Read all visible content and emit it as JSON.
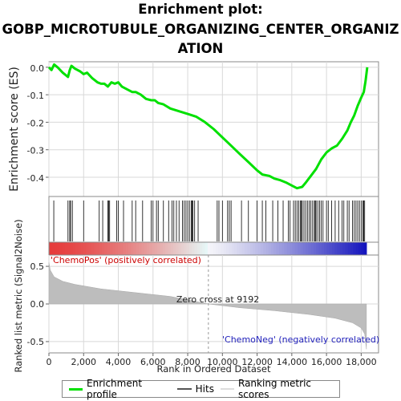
{
  "title_line1": "Enrichment plot:",
  "title_line2": "GOBP_MICROTUBULE_ORGANIZING_CENTER_ORGANIZ",
  "title_line3": "ATION",
  "colors": {
    "es_line": "#00e000",
    "hits": "#000000",
    "metric_fill": "#bdbdbd",
    "pos_label": "#cc0000",
    "neg_label": "#2222bb",
    "grid": "#d8d8d8"
  },
  "chart_data": [
    {
      "type": "line",
      "name": "enrichment-score",
      "ylabel": "Enrichment score (ES)",
      "ylim": [
        -0.47,
        0.02
      ],
      "yticks": [
        0.0,
        -0.1,
        -0.2,
        -0.3,
        -0.4
      ],
      "ytick_labels": [
        "0.0",
        "-0.1",
        "-0.2",
        "-0.3",
        "-0.4"
      ],
      "xlim": [
        0,
        19000
      ],
      "grid": true,
      "points": [
        [
          0,
          0.0
        ],
        [
          150,
          -0.01
        ],
        [
          300,
          0.01
        ],
        [
          500,
          0.0
        ],
        [
          800,
          -0.02
        ],
        [
          1100,
          -0.035
        ],
        [
          1200,
          -0.01
        ],
        [
          1300,
          0.005
        ],
        [
          1500,
          -0.005
        ],
        [
          1800,
          -0.015
        ],
        [
          2000,
          -0.025
        ],
        [
          2200,
          -0.02
        ],
        [
          2500,
          -0.04
        ],
        [
          2800,
          -0.055
        ],
        [
          3000,
          -0.06
        ],
        [
          3200,
          -0.06
        ],
        [
          3400,
          -0.07
        ],
        [
          3600,
          -0.055
        ],
        [
          3800,
          -0.06
        ],
        [
          4000,
          -0.055
        ],
        [
          4200,
          -0.07
        ],
        [
          4500,
          -0.08
        ],
        [
          4800,
          -0.09
        ],
        [
          5000,
          -0.09
        ],
        [
          5300,
          -0.1
        ],
        [
          5600,
          -0.115
        ],
        [
          5900,
          -0.12
        ],
        [
          6100,
          -0.12
        ],
        [
          6300,
          -0.13
        ],
        [
          6600,
          -0.135
        ],
        [
          7000,
          -0.15
        ],
        [
          7500,
          -0.16
        ],
        [
          8000,
          -0.17
        ],
        [
          8500,
          -0.18
        ],
        [
          9000,
          -0.2
        ],
        [
          9500,
          -0.225
        ],
        [
          10000,
          -0.255
        ],
        [
          10500,
          -0.285
        ],
        [
          11000,
          -0.315
        ],
        [
          11500,
          -0.345
        ],
        [
          12000,
          -0.375
        ],
        [
          12300,
          -0.39
        ],
        [
          12700,
          -0.395
        ],
        [
          13000,
          -0.405
        ],
        [
          13300,
          -0.41
        ],
        [
          13700,
          -0.42
        ],
        [
          14000,
          -0.43
        ],
        [
          14300,
          -0.44
        ],
        [
          14600,
          -0.435
        ],
        [
          14800,
          -0.42
        ],
        [
          15100,
          -0.395
        ],
        [
          15400,
          -0.37
        ],
        [
          15700,
          -0.335
        ],
        [
          16000,
          -0.31
        ],
        [
          16300,
          -0.295
        ],
        [
          16600,
          -0.285
        ],
        [
          16900,
          -0.26
        ],
        [
          17200,
          -0.23
        ],
        [
          17400,
          -0.2
        ],
        [
          17600,
          -0.175
        ],
        [
          17800,
          -0.14
        ],
        [
          18000,
          -0.11
        ],
        [
          18150,
          -0.09
        ],
        [
          18250,
          -0.05
        ],
        [
          18350,
          0.0
        ]
      ]
    },
    {
      "type": "bar",
      "name": "ranked-list-metric",
      "ylabel": "Ranked list metric (Signal2Noise)",
      "xlabel": "Rank in Ordered Dataset",
      "ylim": [
        -0.65,
        0.65
      ],
      "yticks": [
        0.5,
        0.0,
        -0.5
      ],
      "ytick_labels": [
        "0.5",
        "0.0",
        "-0.5"
      ],
      "xticks": [
        0,
        2000,
        4000,
        6000,
        8000,
        10000,
        12000,
        14000,
        16000,
        18000
      ],
      "xtick_labels": [
        "0",
        "2,000",
        "4,000",
        "6,000",
        "8,000",
        "10,000",
        "12,000",
        "14,000",
        "16,000",
        "18,000"
      ],
      "xlim": [
        0,
        19000
      ],
      "zero_cross": 9192,
      "zero_cross_label": "Zero cross at 9192",
      "pos_label": "'ChemoPos' (positively correlated)",
      "neg_label": "'ChemoNeg' (negatively correlated)",
      "curve": [
        [
          0,
          0.55
        ],
        [
          80,
          0.45
        ],
        [
          300,
          0.36
        ],
        [
          800,
          0.3
        ],
        [
          1500,
          0.26
        ],
        [
          3000,
          0.2
        ],
        [
          5000,
          0.15
        ],
        [
          7000,
          0.1
        ],
        [
          9192,
          0.0
        ],
        [
          11000,
          -0.05
        ],
        [
          13000,
          -0.09
        ],
        [
          15000,
          -0.14
        ],
        [
          16500,
          -0.19
        ],
        [
          17500,
          -0.25
        ],
        [
          18000,
          -0.32
        ],
        [
          18200,
          -0.4
        ],
        [
          18300,
          -0.6
        ]
      ]
    }
  ],
  "hits": [
    280,
    1100,
    1200,
    1250,
    1350,
    2000,
    2900,
    3100,
    3400,
    3450,
    3500,
    3900,
    4000,
    4300,
    4800,
    5000,
    5400,
    5900,
    6000,
    6200,
    6300,
    6600,
    6900,
    7100,
    7200,
    7350,
    7500,
    7700,
    7800,
    7900,
    8000,
    8100,
    8200,
    8250,
    8300,
    8400,
    8600,
    9700,
    9800,
    10000,
    10300,
    10400,
    10500,
    11100,
    11500,
    12000,
    12300,
    12500,
    12900,
    13200,
    13500,
    13800,
    13900,
    14100,
    14200,
    14300,
    14400,
    14500,
    14550,
    14600,
    14700,
    14800,
    14900,
    15000,
    15100,
    15200,
    15300,
    15350,
    15400,
    15500,
    15600,
    15700,
    15800,
    16000,
    16100,
    16300,
    16500,
    16700,
    16900,
    17000,
    17200,
    17300,
    17500,
    17600,
    17700,
    17800,
    17900,
    18000,
    18100,
    18150,
    18200
  ],
  "legend": {
    "items": [
      {
        "label": "Enrichment profile"
      },
      {
        "label": "Hits"
      },
      {
        "label": "Ranking metric scores"
      }
    ]
  }
}
